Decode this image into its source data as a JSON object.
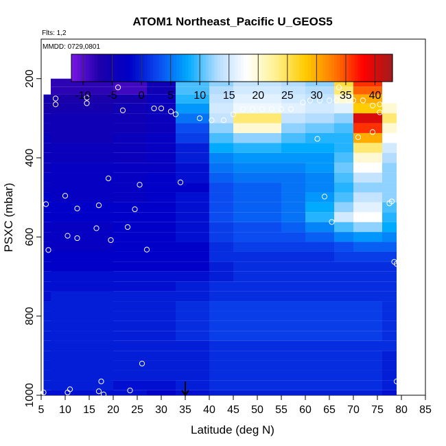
{
  "title": "ATOM1 Northeast_Pacific U_GEOS5",
  "flights_label": "Flts: 1,2",
  "mmdd_label": "MMDD: 0729,0801",
  "chart_data": {
    "type": "heatmap",
    "title": "ATOM1 Northeast_Pacific U_GEOS5",
    "xlabel": "Latitude (deg N)",
    "ylabel": "PSXC (mbar)",
    "xlim": [
      5,
      85
    ],
    "ylim": [
      1000,
      100
    ],
    "y_reversed": true,
    "xticks": [
      "5",
      "10",
      "15",
      "20",
      "25",
      "30",
      "35",
      "40",
      "45",
      "50",
      "55",
      "60",
      "65",
      "70",
      "75",
      "80",
      "85"
    ],
    "yticks": [
      "200",
      "400",
      "600",
      "800",
      "1000"
    ],
    "colorbar": {
      "ticks": [
        "-10",
        "-5",
        "0",
        "5",
        "10",
        "15",
        "20",
        "25",
        "30",
        "35",
        "40"
      ],
      "range": [
        -12,
        43
      ],
      "colors": [
        "#7a16e6",
        "#1a00a8",
        "#0000c8",
        "#0a4cf0",
        "#00aaff",
        "#b4dcff",
        "#ffffff",
        "#fff090",
        "#ffcc00",
        "#ff7a00",
        "#ff0000",
        "#a01c1c"
      ]
    },
    "levels_mbar": [
      210,
      230,
      250,
      275,
      300,
      325,
      350,
      375,
      400,
      425,
      450,
      475,
      500,
      525,
      550,
      575,
      600,
      625,
      650,
      675,
      700,
      725,
      750,
      775,
      800,
      825,
      850,
      875,
      900,
      925,
      950,
      975,
      1000
    ],
    "columns": [
      {
        "lat0": 5.5,
        "lat1": 20,
        "values": [
          null,
          null,
          -6,
          -6,
          -5,
          -5,
          -4,
          -4,
          -4,
          -4,
          -3,
          -3,
          -2,
          -2,
          -2,
          -3,
          -3,
          -3,
          -2,
          -2,
          -1,
          -1,
          -1,
          0,
          0,
          0,
          0,
          0,
          0,
          0,
          0,
          0,
          -1
        ]
      },
      {
        "lat0": 7,
        "lat1": 20,
        "values": [
          -8,
          -8,
          -7,
          -6,
          -5,
          -5,
          -5,
          -4,
          -4,
          -3,
          -3,
          -3,
          -3,
          -2,
          -2,
          -3,
          -3,
          -3,
          -2,
          -2,
          -1,
          -1,
          0,
          0,
          0,
          0,
          0,
          0,
          0,
          0,
          0,
          0,
          -1
        ]
      },
      {
        "lat0": 20,
        "lat1": 27,
        "values": [
          -9,
          -9,
          -6,
          -5,
          -5,
          -5,
          -4,
          -4,
          -4,
          -3,
          -3,
          -3,
          -3,
          -2,
          -2,
          -2,
          -2,
          -2,
          -2,
          -2,
          -1,
          -1,
          0,
          0,
          0,
          0,
          0,
          0,
          0,
          0,
          0,
          -1,
          -1
        ]
      },
      {
        "lat0": 27,
        "lat1": 33,
        "values": [
          -5,
          -5,
          -4,
          -4,
          -4,
          -4,
          -3,
          -3,
          -3,
          -3,
          -2,
          -2,
          -2,
          -2,
          -2,
          -2,
          -2,
          -2,
          -2,
          -2,
          -1,
          -1,
          0,
          0,
          0,
          0,
          0,
          0,
          0,
          0,
          0,
          -1,
          -2
        ]
      },
      {
        "lat0": 33,
        "lat1": 40,
        "values": [
          10,
          10,
          9,
          7,
          5,
          3,
          2,
          0,
          0,
          -1,
          -1,
          -2,
          -1,
          -1,
          -1,
          -1,
          -1,
          -2,
          -2,
          -2,
          -1,
          0,
          0,
          1,
          1,
          1,
          1,
          0,
          0,
          0,
          0,
          0,
          -1
        ]
      },
      {
        "lat0": 40,
        "lat1": 45,
        "values": [
          12,
          13,
          14,
          15,
          14,
          12,
          10,
          8,
          6,
          5,
          4,
          3,
          3,
          3,
          3,
          2,
          2,
          1,
          1,
          0,
          0,
          1,
          1,
          2,
          2,
          2,
          2,
          1,
          1,
          1,
          1,
          1,
          0
        ]
      },
      {
        "lat0": 45,
        "lat1": 55,
        "values": [
          14,
          15,
          16,
          17,
          24,
          20,
          12,
          9,
          7,
          6,
          5,
          4,
          4,
          4,
          4,
          3,
          3,
          2,
          1,
          1,
          1,
          1,
          1,
          2,
          2,
          2,
          2,
          1,
          1,
          1,
          1,
          1,
          0
        ]
      },
      {
        "lat0": 55,
        "lat1": 60,
        "values": [
          13,
          14,
          15,
          16,
          14,
          12,
          10,
          8,
          7,
          6,
          5,
          5,
          5,
          5,
          5,
          4,
          3,
          2,
          1,
          1,
          1,
          1,
          1,
          2,
          2,
          2,
          2,
          1,
          1,
          1,
          1,
          1,
          0
        ]
      },
      {
        "lat0": 60,
        "lat1": 66,
        "values": [
          12,
          13,
          14,
          15,
          13,
          11,
          9,
          8,
          7,
          7,
          6,
          6,
          7,
          8,
          9,
          6,
          4,
          2,
          1,
          1,
          1,
          1,
          1,
          2,
          2,
          2,
          2,
          1,
          1,
          1,
          1,
          1,
          0
        ]
      },
      {
        "lat0": 66,
        "lat1": 70,
        "values": [
          26,
          24,
          20,
          16,
          12,
          10,
          9,
          9,
          10,
          11,
          10,
          9,
          10,
          12,
          15,
          10,
          6,
          3,
          2,
          1,
          1,
          1,
          1,
          2,
          2,
          2,
          2,
          1,
          1,
          1,
          1,
          1,
          0
        ]
      },
      {
        "lat0": 70,
        "lat1": 76,
        "values": [
          36,
          34,
          30,
          28,
          40,
          36,
          30,
          24,
          20,
          18,
          14,
          12,
          14,
          16,
          18,
          12,
          7,
          4,
          2,
          1,
          1,
          1,
          1,
          2,
          2,
          2,
          2,
          1,
          1,
          1,
          1,
          1,
          0
        ]
      },
      {
        "lat0": 76,
        "lat1": 79,
        "values": [
          null,
          null,
          null,
          20,
          24,
          20,
          18,
          15,
          13,
          12,
          12,
          12,
          12,
          10,
          9,
          8,
          6,
          4,
          2,
          1,
          1,
          1,
          1,
          1,
          1,
          1,
          1,
          1,
          0,
          0,
          0,
          0,
          -1
        ]
      }
    ],
    "points": [
      {
        "x": 8,
        "y": 250
      },
      {
        "x": 8,
        "y": 265
      },
      {
        "x": 14.5,
        "y": 248
      },
      {
        "x": 14.5,
        "y": 262
      },
      {
        "x": 21,
        "y": 222
      },
      {
        "x": 22,
        "y": 280
      },
      {
        "x": 28,
        "y": 197
      },
      {
        "x": 30.5,
        "y": 197
      },
      {
        "x": 28.5,
        "y": 275
      },
      {
        "x": 30,
        "y": 275
      },
      {
        "x": 32,
        "y": 283
      },
      {
        "x": 33,
        "y": 290
      },
      {
        "x": 38,
        "y": 300
      },
      {
        "x": 40.5,
        "y": 305
      },
      {
        "x": 43,
        "y": 305
      },
      {
        "x": 45,
        "y": 290
      },
      {
        "x": 47,
        "y": 277
      },
      {
        "x": 49,
        "y": 277
      },
      {
        "x": 51,
        "y": 277
      },
      {
        "x": 53,
        "y": 277
      },
      {
        "x": 55,
        "y": 277
      },
      {
        "x": 57,
        "y": 277
      },
      {
        "x": 59.5,
        "y": 260
      },
      {
        "x": 61,
        "y": 255
      },
      {
        "x": 63,
        "y": 255
      },
      {
        "x": 65,
        "y": 255
      },
      {
        "x": 66.5,
        "y": 255
      },
      {
        "x": 67,
        "y": 222
      },
      {
        "x": 69,
        "y": 255
      },
      {
        "x": 70,
        "y": 255
      },
      {
        "x": 72,
        "y": 255
      },
      {
        "x": 74,
        "y": 268
      },
      {
        "x": 75.5,
        "y": 265
      },
      {
        "x": 75.5,
        "y": 285
      },
      {
        "x": 62.5,
        "y": 352
      },
      {
        "x": 71,
        "y": 348
      },
      {
        "x": 74,
        "y": 335
      },
      {
        "x": 19,
        "y": 452
      },
      {
        "x": 25.5,
        "y": 468
      },
      {
        "x": 34,
        "y": 462
      },
      {
        "x": 10,
        "y": 496
      },
      {
        "x": 6,
        "y": 517
      },
      {
        "x": 12.5,
        "y": 528
      },
      {
        "x": 17,
        "y": 520
      },
      {
        "x": 24.5,
        "y": 530
      },
      {
        "x": 64,
        "y": 498
      },
      {
        "x": 65.5,
        "y": 562
      },
      {
        "x": 77.5,
        "y": 515
      },
      {
        "x": 78,
        "y": 510
      },
      {
        "x": 16.5,
        "y": 578
      },
      {
        "x": 23,
        "y": 575
      },
      {
        "x": 10.5,
        "y": 597
      },
      {
        "x": 12.5,
        "y": 603
      },
      {
        "x": 19.5,
        "y": 608
      },
      {
        "x": 6.5,
        "y": 633
      },
      {
        "x": 27,
        "y": 632
      },
      {
        "x": 78.5,
        "y": 663
      },
      {
        "x": 79,
        "y": 668
      },
      {
        "x": 26,
        "y": 920
      },
      {
        "x": 79,
        "y": 965
      },
      {
        "x": 17.5,
        "y": 965
      },
      {
        "x": 11,
        "y": 985
      },
      {
        "x": 10.5,
        "y": 993
      },
      {
        "x": 17,
        "y": 990
      },
      {
        "x": 18,
        "y": 998
      },
      {
        "x": 23.5,
        "y": 988
      },
      {
        "x": 5.5,
        "y": 993
      }
    ],
    "arrow_marker": {
      "x": 35,
      "y": 1000
    }
  }
}
